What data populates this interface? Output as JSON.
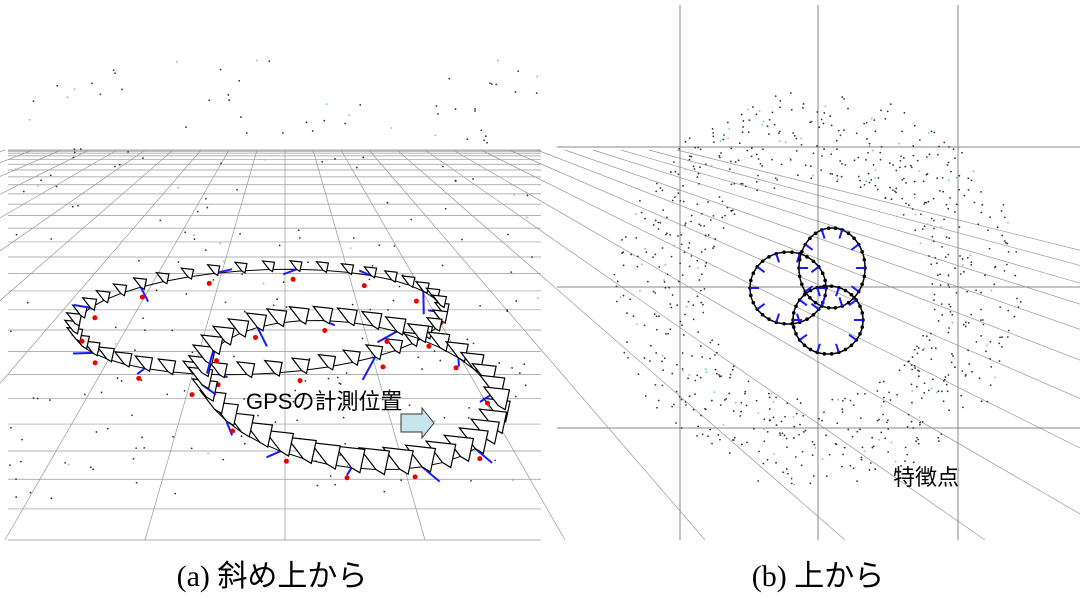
{
  "panels": [
    {
      "caption": "(a) 斜め上から",
      "annotation": "GPSの計測位置"
    },
    {
      "caption": "(b) 上から",
      "annotation": "特徴点"
    }
  ]
}
